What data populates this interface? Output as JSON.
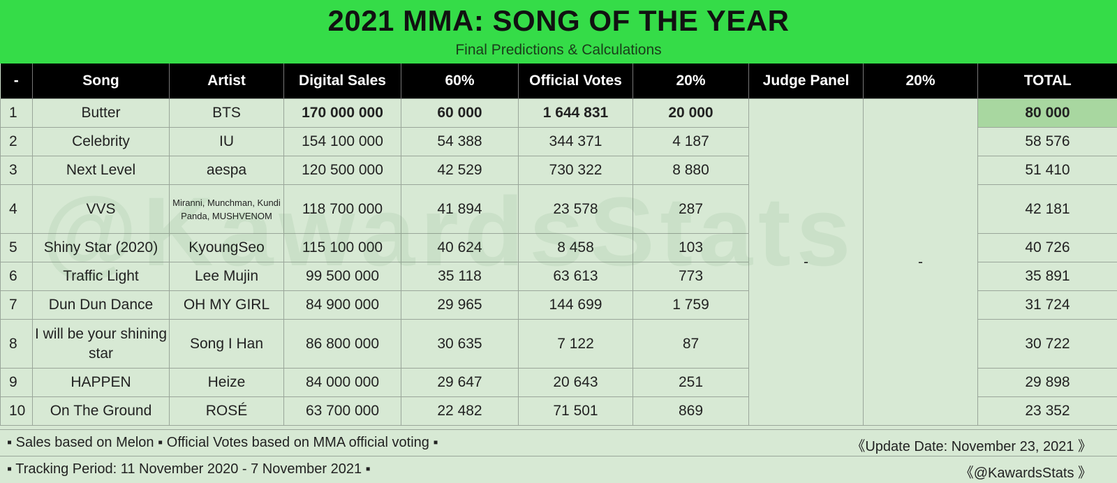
{
  "title": "2021 MMA: SONG OF THE YEAR",
  "subtitle": "Final Predictions & Calculations",
  "watermark": "@KawardsStats",
  "columns": [
    "-",
    "Song",
    "Artist",
    "Digital Sales",
    "60%",
    "Official Votes",
    "20%",
    "Judge Panel",
    "20%",
    "TOTAL"
  ],
  "judge_panel_value": "-",
  "judge_pct_value": "-",
  "rows": [
    {
      "rank": "1",
      "song": "Butter",
      "artist": "BTS",
      "sales": "170 000 000",
      "sales_pct": "60 000",
      "votes": "1 644 831",
      "votes_pct": "20 000",
      "total": "80 000"
    },
    {
      "rank": "2",
      "song": "Celebrity",
      "artist": "IU",
      "sales": "154 100 000",
      "sales_pct": "54 388",
      "votes": "344 371",
      "votes_pct": "4 187",
      "total": "58 576"
    },
    {
      "rank": "3",
      "song": "Next Level",
      "artist": "aespa",
      "sales": "120 500 000",
      "sales_pct": "42 529",
      "votes": "730 322",
      "votes_pct": "8 880",
      "total": "51 410"
    },
    {
      "rank": "4",
      "song": "VVS",
      "artist": "Miranni, Munchman, Kundi Panda, MUSHVENOM",
      "sales": "118 700 000",
      "sales_pct": "41 894",
      "votes": "23 578",
      "votes_pct": "287",
      "total": "42 181"
    },
    {
      "rank": "5",
      "song": "Shiny Star (2020)",
      "artist": "KyoungSeo",
      "sales": "115 100 000",
      "sales_pct": "40 624",
      "votes": "8 458",
      "votes_pct": "103",
      "total": "40 726"
    },
    {
      "rank": "6",
      "song": "Traffic Light",
      "artist": "Lee Mujin",
      "sales": "99 500 000",
      "sales_pct": "35 118",
      "votes": "63 613",
      "votes_pct": "773",
      "total": "35 891"
    },
    {
      "rank": "7",
      "song": "Dun Dun Dance",
      "artist": "OH MY GIRL",
      "sales": "84 900 000",
      "sales_pct": "29 965",
      "votes": "144 699",
      "votes_pct": "1 759",
      "total": "31 724"
    },
    {
      "rank": "8",
      "song": "I will be your shining star",
      "artist": "Song I Han",
      "sales": "86 800 000",
      "sales_pct": "30 635",
      "votes": "7 122",
      "votes_pct": "87",
      "total": "30 722"
    },
    {
      "rank": "9",
      "song": "HAPPEN",
      "artist": "Heize",
      "sales": "84 000 000",
      "sales_pct": "29 647",
      "votes": "20 643",
      "votes_pct": "251",
      "total": "29 898"
    },
    {
      "rank": "10",
      "song": "On The Ground",
      "artist": "ROSÉ",
      "sales": "63 700 000",
      "sales_pct": "22 482",
      "votes": "71 501",
      "votes_pct": "869",
      "total": "23 352"
    }
  ],
  "footer": {
    "note_left": "▪ Sales based on Melon ▪ Official Votes based on MMA official voting ▪",
    "update_date": "《Update Date: November 23, 2021 》",
    "tracking": "▪ Tracking Period: 11 November 2020 - 7 November 2021 ▪",
    "handle": "《@KawardsStats 》"
  }
}
